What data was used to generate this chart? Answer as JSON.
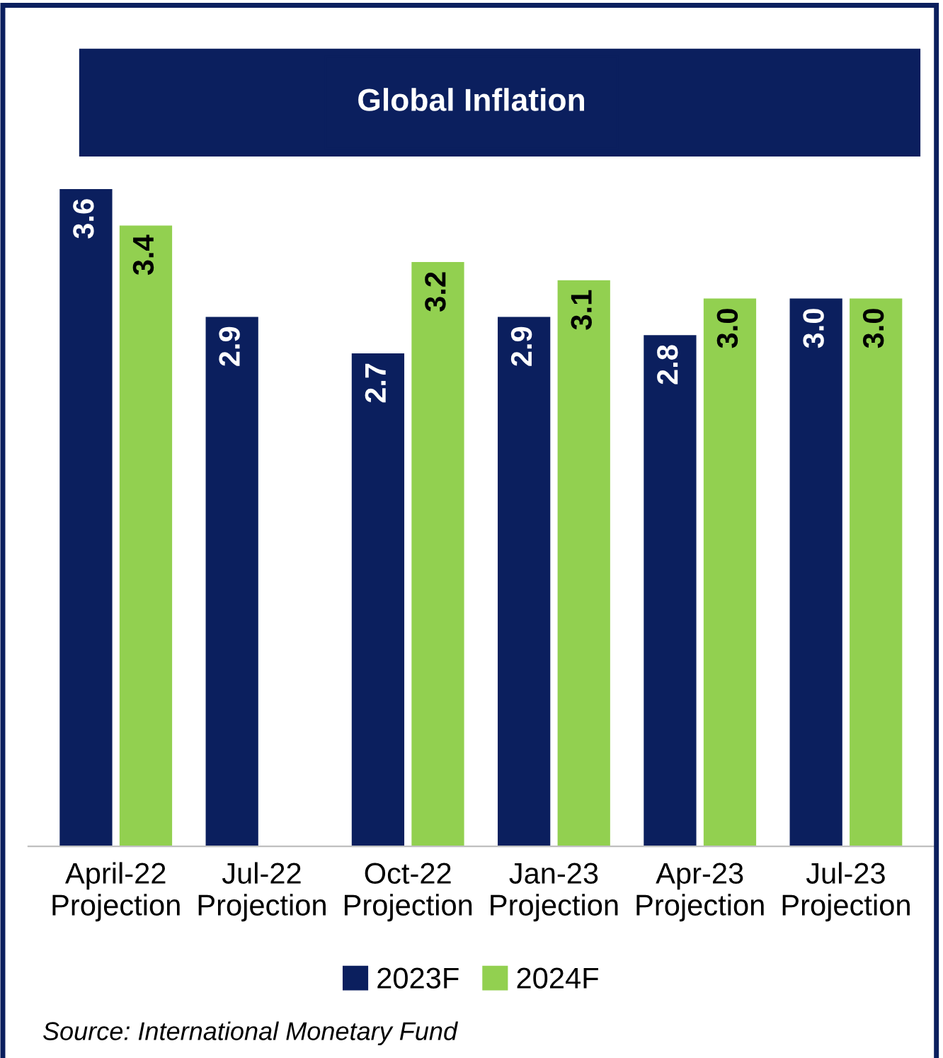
{
  "chart_data": {
    "type": "bar",
    "title": "Global Inflation",
    "categories": [
      "April-22\nProjection",
      "Jul-22\nProjection",
      "Oct-22\nProjection",
      "Jan-23\nProjection",
      "Apr-23\nProjection",
      "Jul-23\nProjection"
    ],
    "series": [
      {
        "name": "2023F",
        "color": "#0b1f5e",
        "values": [
          3.6,
          2.9,
          2.7,
          2.9,
          2.8,
          3.0
        ],
        "value_labels": [
          "3.6",
          "2.9",
          "2.7",
          "2.9",
          "2.8",
          "3.0"
        ]
      },
      {
        "name": "2024F",
        "color": "#92d050",
        "values": [
          3.4,
          null,
          3.2,
          3.1,
          3.0,
          3.0
        ],
        "value_labels": [
          "3.4",
          null,
          "3.2",
          "3.1",
          "3.0",
          "3.0"
        ]
      }
    ],
    "legend": "bottom",
    "grid": false,
    "annotations": [
      "Source: International Monetary Fund"
    ]
  }
}
